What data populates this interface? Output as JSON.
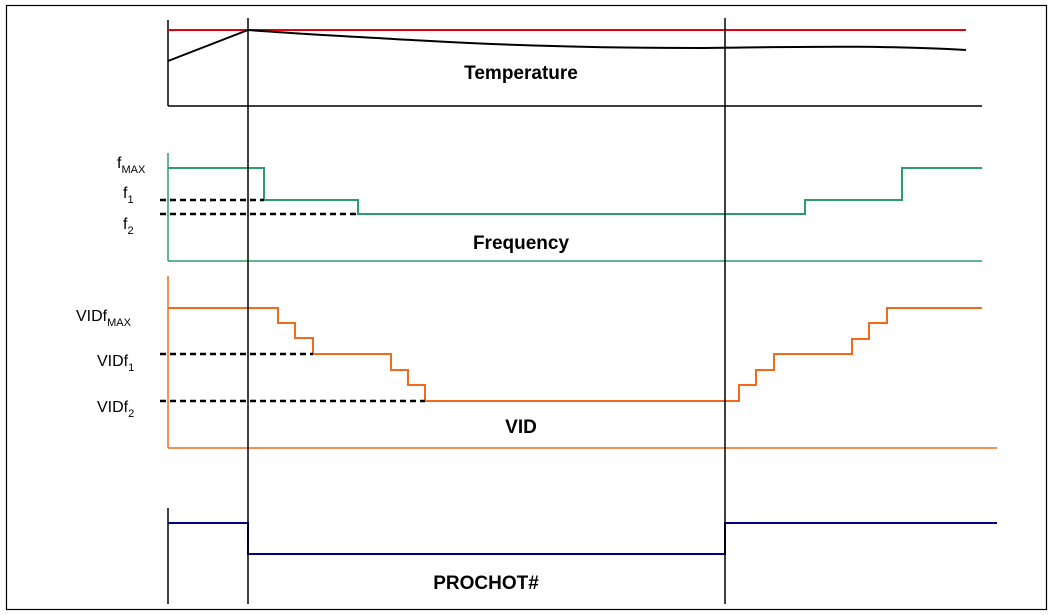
{
  "colors": {
    "temperature_limit": "#e4000f",
    "temperature": "#000000",
    "frequency": "#2e9c6a",
    "vid": "#f26b1d",
    "prochot": "#000080",
    "frame": "#000000"
  },
  "temperature": {
    "title": "Temperature"
  },
  "frequency": {
    "title": "Frequency",
    "labels": {
      "fmax_base": "f",
      "fmax_sub": "MAX",
      "f1_base": "f",
      "f1_sub": "1",
      "f2_base": "f",
      "f2_sub": "2"
    }
  },
  "vid": {
    "title": "VID",
    "labels": {
      "vmax_base": "VIDf",
      "vmax_sub": "MAX",
      "v1_base": "VIDf",
      "v1_sub": "1",
      "v2_base": "VIDf",
      "v2_sub": "2"
    }
  },
  "prochot": {
    "title": "PROCHOT#"
  }
}
